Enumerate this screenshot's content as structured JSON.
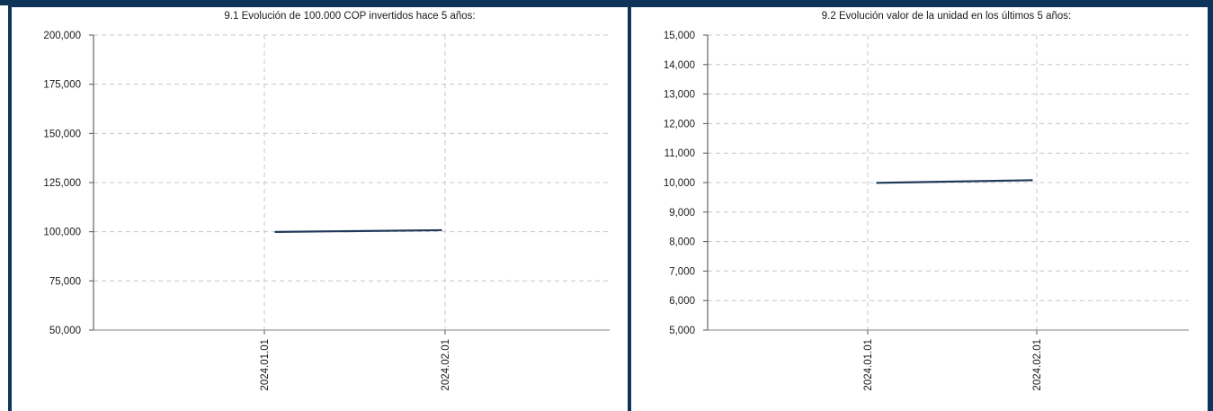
{
  "colors": {
    "frame": "#0f3459",
    "line": "#1f3a5a",
    "grid": "#c8c8c8"
  },
  "chart_data": [
    {
      "type": "line",
      "title": "9.1 Evolución de 100.000 COP invertidos hace 5 años:",
      "xlabel": "",
      "ylabel": "",
      "x": [
        "2024.01.01",
        "2024.02.01"
      ],
      "values": [
        99900,
        100800
      ],
      "ylim": [
        50000,
        200000
      ],
      "yticks": [
        200000,
        175000,
        150000,
        125000,
        100000,
        75000,
        50000
      ],
      "ytick_labels": [
        "200,000",
        "175,000",
        "150,000",
        "125,000",
        "100,000",
        "75,000",
        "50,000"
      ],
      "xtick_labels": [
        "2024.01.01",
        "2024.02.01"
      ],
      "grid": true,
      "legend": "none"
    },
    {
      "type": "line",
      "title": "9.2 Evolución valor de la unidad en los últimos 5 años:",
      "xlabel": "",
      "ylabel": "",
      "x": [
        "2024.01.01",
        "2024.02.01"
      ],
      "values": [
        9990,
        10080
      ],
      "ylim": [
        5000,
        15000
      ],
      "yticks": [
        15000,
        14000,
        13000,
        12000,
        11000,
        10000,
        9000,
        8000,
        7000,
        6000,
        5000
      ],
      "ytick_labels": [
        "15,000",
        "14,000",
        "13,000",
        "12,000",
        "11,000",
        "10,000",
        "9,000",
        "8,000",
        "7,000",
        "6,000",
        "5,000"
      ],
      "xtick_labels": [
        "2024.01.01",
        "2024.02.01"
      ],
      "grid": true,
      "legend": "none"
    }
  ]
}
